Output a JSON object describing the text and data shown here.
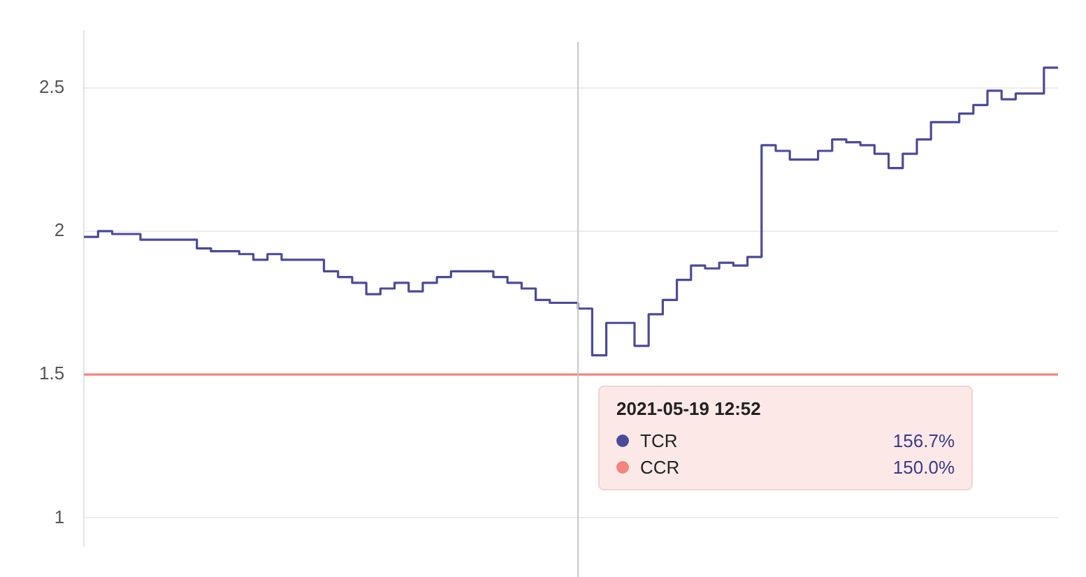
{
  "chart_data": {
    "type": "step",
    "categories": [
      null,
      null,
      null,
      null,
      null,
      null,
      null,
      null,
      null,
      null,
      null,
      null,
      null,
      null,
      null,
      null,
      null,
      null,
      null,
      null,
      null,
      null,
      null,
      null,
      null,
      null,
      null,
      null,
      null,
      null,
      null,
      null,
      null,
      null,
      null,
      null,
      null,
      null,
      null,
      null,
      null,
      null,
      null,
      null,
      null,
      null,
      null,
      null,
      null,
      null,
      null,
      null,
      null,
      null,
      null,
      null,
      null,
      null,
      null,
      null,
      null,
      null,
      null,
      null,
      null,
      null,
      null,
      null,
      null,
      null
    ],
    "series": [
      {
        "name": "TCR",
        "color": "#4b4a9a",
        "values": [
          1.98,
          1.98,
          2.0,
          1.99,
          1.99,
          1.97,
          1.97,
          1.97,
          1.97,
          1.94,
          1.93,
          1.93,
          1.92,
          1.9,
          1.92,
          1.9,
          1.9,
          1.9,
          1.86,
          1.84,
          1.82,
          1.78,
          1.8,
          1.82,
          1.79,
          1.82,
          1.84,
          1.86,
          1.86,
          1.86,
          1.84,
          1.82,
          1.8,
          1.76,
          1.75,
          1.75,
          1.73,
          1.567,
          1.68,
          1.68,
          1.6,
          1.71,
          1.76,
          1.83,
          1.88,
          1.87,
          1.89,
          1.88,
          1.91,
          2.3,
          2.28,
          2.25,
          2.25,
          2.28,
          2.32,
          2.31,
          2.3,
          2.27,
          2.22,
          2.27,
          2.32,
          2.38,
          2.38,
          2.41,
          2.44,
          2.49,
          2.46,
          2.48,
          2.48,
          2.57
        ]
      },
      {
        "name": "CCR",
        "color": "#f4837d",
        "values": [
          1.5,
          1.5,
          1.5,
          1.5,
          1.5,
          1.5,
          1.5,
          1.5,
          1.5,
          1.5,
          1.5,
          1.5,
          1.5,
          1.5,
          1.5,
          1.5,
          1.5,
          1.5,
          1.5,
          1.5,
          1.5,
          1.5,
          1.5,
          1.5,
          1.5,
          1.5,
          1.5,
          1.5,
          1.5,
          1.5,
          1.5,
          1.5,
          1.5,
          1.5,
          1.5,
          1.5,
          1.5,
          1.5,
          1.5,
          1.5,
          1.5,
          1.5,
          1.5,
          1.5,
          1.5,
          1.5,
          1.5,
          1.5,
          1.5,
          1.5,
          1.5,
          1.5,
          1.5,
          1.5,
          1.5,
          1.5,
          1.5,
          1.5,
          1.5,
          1.5,
          1.5,
          1.5,
          1.5,
          1.5,
          1.5,
          1.5,
          1.5,
          1.5,
          1.5,
          1.5
        ]
      }
    ],
    "ylim": [
      0.9,
      2.7
    ],
    "yticks": [
      1,
      1.5,
      2,
      2.5
    ],
    "grid": "y",
    "legend": "bottom",
    "marker": "none",
    "annotations": [
      "2021-05-19 12:52",
      "156.7%",
      "150.0%"
    ]
  }
}
